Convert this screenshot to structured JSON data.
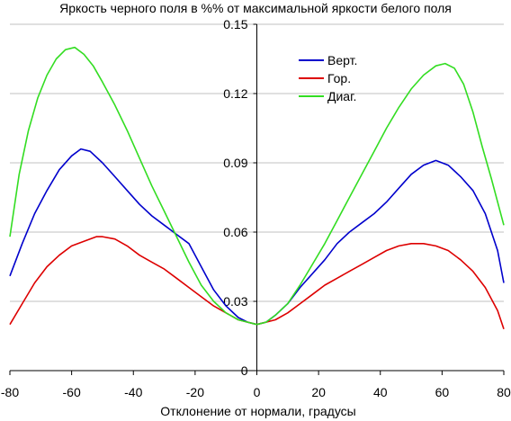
{
  "chart_data": {
    "type": "line",
    "title": "Яркость черного поля в %% от максимальной яркости белого поля",
    "xlabel": "Отклонение от нормали, градусы",
    "ylabel": "",
    "xlim": [
      -80,
      80
    ],
    "ylim": [
      0,
      0.15
    ],
    "x_ticks": [
      -80,
      -60,
      -40,
      -20,
      0,
      20,
      40,
      60,
      80
    ],
    "y_ticks": [
      0,
      0.03,
      0.06,
      0.09,
      0.12,
      0.15
    ],
    "x_tick_labels": [
      "-80",
      "-60",
      "-40",
      "-20",
      "0",
      "20",
      "40",
      "60",
      "80"
    ],
    "y_tick_labels": [
      "0",
      "0.03",
      "0.06",
      "0.09",
      "0.12",
      "0.15"
    ],
    "grid": "horizontal",
    "legend_position": "top-right",
    "series": [
      {
        "name": "Верт.",
        "color": "#0000cc",
        "x": [
          -80,
          -76,
          -72,
          -68,
          -64,
          -60,
          -57,
          -54,
          -50,
          -46,
          -42,
          -38,
          -34,
          -30,
          -26,
          -22,
          -18,
          -14,
          -10,
          -6,
          -3,
          0,
          3,
          6,
          10,
          14,
          18,
          22,
          26,
          30,
          34,
          38,
          42,
          46,
          50,
          54,
          58,
          62,
          66,
          70,
          74,
          78,
          80
        ],
        "y": [
          0.041,
          0.055,
          0.068,
          0.078,
          0.087,
          0.093,
          0.096,
          0.095,
          0.09,
          0.084,
          0.078,
          0.072,
          0.067,
          0.063,
          0.059,
          0.055,
          0.045,
          0.035,
          0.028,
          0.023,
          0.021,
          0.02,
          0.021,
          0.024,
          0.029,
          0.036,
          0.042,
          0.048,
          0.055,
          0.06,
          0.064,
          0.068,
          0.073,
          0.079,
          0.085,
          0.089,
          0.091,
          0.089,
          0.084,
          0.078,
          0.068,
          0.052,
          0.038
        ]
      },
      {
        "name": "Гор.",
        "color": "#dd0000",
        "x": [
          -80,
          -76,
          -72,
          -68,
          -64,
          -60,
          -56,
          -52,
          -50,
          -46,
          -42,
          -38,
          -34,
          -30,
          -26,
          -22,
          -18,
          -14,
          -10,
          -6,
          -3,
          0,
          3,
          6,
          10,
          14,
          18,
          22,
          26,
          30,
          34,
          38,
          42,
          46,
          50,
          54,
          58,
          62,
          66,
          70,
          74,
          78,
          80
        ],
        "y": [
          0.02,
          0.029,
          0.038,
          0.045,
          0.05,
          0.054,
          0.056,
          0.058,
          0.058,
          0.057,
          0.054,
          0.05,
          0.047,
          0.044,
          0.04,
          0.036,
          0.032,
          0.028,
          0.025,
          0.022,
          0.021,
          0.02,
          0.021,
          0.022,
          0.025,
          0.029,
          0.033,
          0.037,
          0.04,
          0.043,
          0.046,
          0.049,
          0.052,
          0.054,
          0.055,
          0.055,
          0.054,
          0.052,
          0.048,
          0.043,
          0.036,
          0.026,
          0.018
        ]
      },
      {
        "name": "Диаг.",
        "color": "#33dd22",
        "x": [
          -80,
          -77,
          -74,
          -71,
          -68,
          -65,
          -62,
          -59,
          -56,
          -53,
          -50,
          -46,
          -42,
          -38,
          -34,
          -30,
          -26,
          -22,
          -18,
          -14,
          -10,
          -6,
          -3,
          0,
          3,
          6,
          10,
          14,
          18,
          22,
          26,
          30,
          34,
          38,
          42,
          46,
          50,
          54,
          58,
          61,
          64,
          67,
          70,
          73,
          76,
          80
        ],
        "y": [
          0.058,
          0.085,
          0.104,
          0.118,
          0.128,
          0.135,
          0.139,
          0.14,
          0.137,
          0.132,
          0.125,
          0.115,
          0.104,
          0.092,
          0.08,
          0.069,
          0.058,
          0.047,
          0.037,
          0.03,
          0.025,
          0.022,
          0.021,
          0.02,
          0.021,
          0.024,
          0.029,
          0.037,
          0.046,
          0.055,
          0.065,
          0.075,
          0.085,
          0.095,
          0.105,
          0.114,
          0.122,
          0.128,
          0.132,
          0.133,
          0.131,
          0.124,
          0.112,
          0.097,
          0.083,
          0.063
        ]
      }
    ]
  }
}
